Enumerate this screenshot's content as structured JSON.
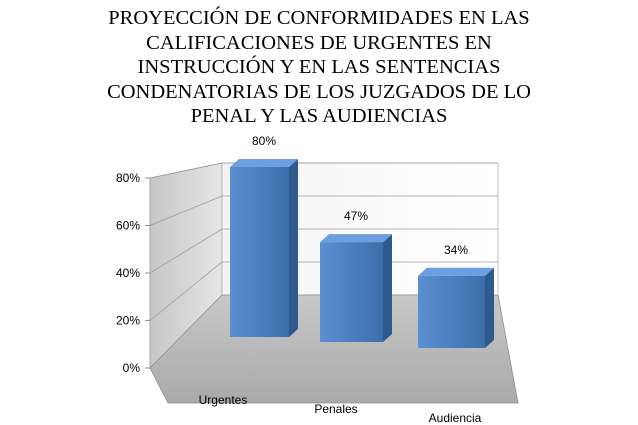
{
  "chart_data": {
    "type": "bar",
    "title_lines": [
      "PROYECCIÓN DE CONFORMIDADES EN LAS",
      "CALIFICACIONES DE URGENTES EN",
      "INSTRUCCIÓN Y EN LAS SENTENCIAS",
      "CONDENATORIAS DE LOS JUZGADOS DE LO",
      "PENAL Y LAS AUDIENCIAS"
    ],
    "categories": [
      "Urgentes",
      "Penales",
      "Audiencia"
    ],
    "values": [
      80,
      47,
      34
    ],
    "data_labels": [
      "80%",
      "47%",
      "34%"
    ],
    "y_ticks": [
      "0%",
      "20%",
      "40%",
      "60%",
      "80%"
    ],
    "ylim": [
      0,
      80
    ],
    "grid": true,
    "legend": "none",
    "bar_color": "#4f81bd"
  }
}
